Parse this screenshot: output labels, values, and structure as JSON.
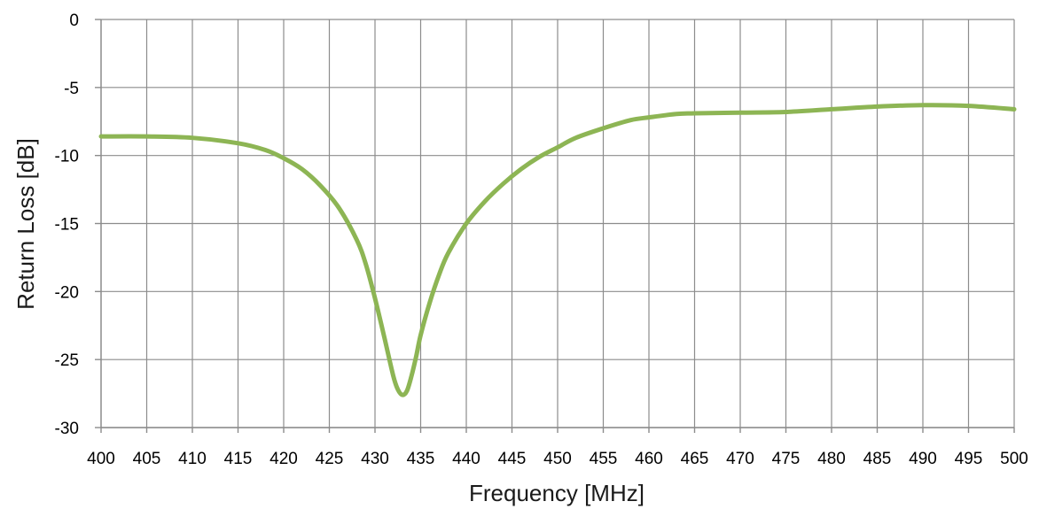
{
  "chart_data": {
    "type": "line",
    "title": "",
    "xlabel": "Frequency [MHz]",
    "ylabel": "Return  Loss [dB]",
    "xlim": [
      400,
      500
    ],
    "ylim": [
      -30,
      0
    ],
    "x_ticks": [
      "400",
      "405",
      "410",
      "415",
      "420",
      "425",
      "430",
      "435",
      "440",
      "445",
      "450",
      "455",
      "460",
      "465",
      "470",
      "475",
      "480",
      "485",
      "490",
      "495",
      "500"
    ],
    "y_ticks": [
      "0",
      "-5",
      "-10",
      "-15",
      "-20",
      "-25",
      "-30"
    ],
    "grid": true,
    "legend": "none",
    "series": [
      {
        "color": "#8db554",
        "x": [
          400,
          405,
          410,
          415,
          418,
          420,
          422,
          424,
          426,
          428,
          429,
          430,
          431,
          432,
          432.5,
          433,
          433.5,
          434,
          434.5,
          435,
          436,
          437,
          438,
          440,
          442,
          444,
          446,
          448,
          450,
          452,
          455,
          458,
          460,
          463,
          465,
          470,
          475,
          480,
          485,
          490,
          495,
          500
        ],
        "y": [
          -8.6,
          -8.6,
          -8.7,
          -9.1,
          -9.6,
          -10.2,
          -11.0,
          -12.2,
          -13.8,
          -16.2,
          -18.0,
          -20.5,
          -23.3,
          -26.2,
          -27.2,
          -27.6,
          -27.3,
          -26.2,
          -24.8,
          -23.2,
          -20.8,
          -18.8,
          -17.2,
          -15.0,
          -13.4,
          -12.1,
          -11.0,
          -10.1,
          -9.4,
          -8.7,
          -8.0,
          -7.4,
          -7.2,
          -6.95,
          -6.9,
          -6.85,
          -6.8,
          -6.6,
          -6.4,
          -6.3,
          -6.35,
          -6.6
        ]
      }
    ]
  }
}
